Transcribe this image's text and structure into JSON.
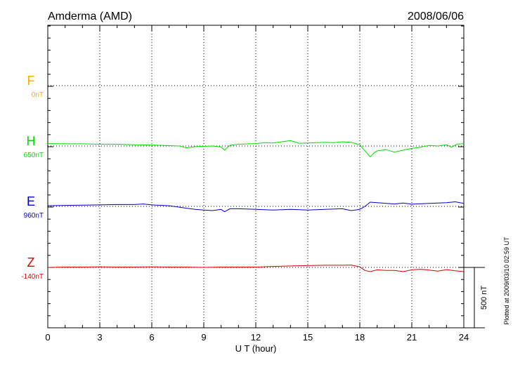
{
  "header": {
    "station": "Amderma (AMD)",
    "date": "2008/06/06"
  },
  "side_note": "Plotted at 2009/03/10 02:59 UT",
  "scale_bar": {
    "label": "500 nT",
    "value": 500
  },
  "colors": {
    "F": "#ffaa00",
    "H": "#00dd00",
    "E": "#0000cc",
    "Z": "#dd0000",
    "grid": "#000000",
    "axis": "#000000"
  },
  "chart_data": {
    "type": "line",
    "title": "Amderma (AMD)",
    "xlabel": "U T (hour)",
    "ylabel": "",
    "xlim": [
      0,
      24
    ],
    "x_ticks": [
      0,
      3,
      6,
      9,
      12,
      15,
      18,
      21,
      24
    ],
    "x_tick_labels": [
      "0",
      "3",
      "6",
      "9",
      "12",
      "15",
      "18",
      "21",
      "24"
    ],
    "grid": true,
    "series": [
      {
        "name": "F",
        "baseline_label": "0nT",
        "color": "#ffaa00",
        "x": [],
        "y": []
      },
      {
        "name": "H",
        "baseline_label": "650nT",
        "color": "#00dd00",
        "x": [
          0,
          1,
          2,
          3,
          4,
          5,
          6,
          7,
          7.6,
          8,
          8.5,
          9,
          9.5,
          10,
          10.2,
          10.5,
          11,
          12,
          12.5,
          13,
          13.5,
          14,
          14.5,
          15,
          15.5,
          16,
          16.5,
          17,
          17.5,
          18,
          18.3,
          18.6,
          18.8,
          19,
          19.5,
          20,
          20.5,
          21,
          21.5,
          22,
          22.5,
          23,
          23.3,
          23.6,
          24
        ],
        "y": [
          20,
          18,
          18,
          15,
          15,
          10,
          8,
          3,
          0,
          -15,
          -5,
          -3,
          0,
          -8,
          -35,
          5,
          15,
          20,
          28,
          25,
          35,
          45,
          22,
          25,
          28,
          30,
          28,
          35,
          30,
          10,
          -40,
          -90,
          -60,
          -40,
          -30,
          -50,
          -35,
          -20,
          -10,
          5,
          0,
          10,
          -10,
          15,
          20
        ]
      },
      {
        "name": "E",
        "baseline_label": "960nT",
        "color": "#0000cc",
        "x": [
          0,
          1,
          2,
          3,
          4,
          5,
          5.5,
          6,
          7,
          8,
          8.5,
          9,
          9.5,
          10,
          10.2,
          10.5,
          11,
          12,
          13,
          14,
          15,
          16,
          17,
          17.5,
          18,
          18.3,
          18.6,
          19,
          20,
          20.5,
          21,
          22,
          23,
          23.5,
          24
        ],
        "y": [
          5,
          8,
          10,
          12,
          15,
          15,
          20,
          12,
          5,
          -15,
          -25,
          -30,
          -35,
          -25,
          -45,
          -20,
          -20,
          -25,
          -30,
          -25,
          -30,
          -25,
          -20,
          -35,
          -25,
          0,
          35,
          30,
          20,
          28,
          18,
          25,
          30,
          38,
          25
        ]
      },
      {
        "name": "Z",
        "baseline_label": "-140nT",
        "color": "#dd0000",
        "x": [
          0,
          1,
          2,
          3,
          4,
          5,
          6,
          7,
          8,
          9,
          10,
          11,
          12,
          13,
          14,
          15,
          16,
          17,
          17.5,
          18,
          18.3,
          18.6,
          19,
          19.5,
          20,
          20.5,
          21,
          21.5,
          22,
          22.5,
          23,
          23.5,
          24
        ],
        "y": [
          0,
          3,
          3,
          5,
          3,
          3,
          5,
          3,
          3,
          0,
          3,
          3,
          3,
          8,
          12,
          15,
          18,
          18,
          20,
          5,
          -25,
          -35,
          -20,
          -25,
          -25,
          -35,
          -20,
          -15,
          -22,
          -30,
          -18,
          -28,
          -35
        ]
      }
    ]
  }
}
